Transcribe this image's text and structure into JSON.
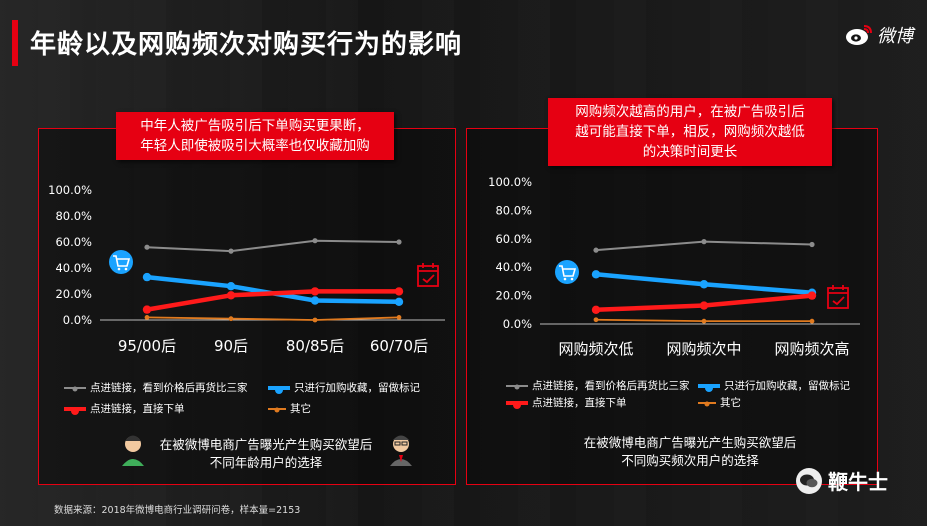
{
  "page": {
    "title": "年龄以及网购频次对购买行为的影响",
    "brand": "微博",
    "source": "数据来源：2018年微博电商行业调研问卷，样本量=2153",
    "watermark": "鞭牛士"
  },
  "colors": {
    "gray": "#8c8c8c",
    "blue": "#1aa3ff",
    "red": "#ff1a1a",
    "orange": "#e07a1f",
    "accent": "#e60012"
  },
  "chart_data": [
    {
      "type": "line",
      "callout": [
        "中年人被广告吸引后下单购买更果断，",
        "年轻人即使被吸引大概率也仅收藏加购"
      ],
      "categories": [
        "95/00后",
        "90后",
        "80/85后",
        "60/70后"
      ],
      "yticks": [
        "100.0%",
        "80.0%",
        "60.0%",
        "40.0%",
        "20.0%",
        "0.0%"
      ],
      "ylim": [
        0,
        100
      ],
      "series": [
        {
          "name": "点进链接，看到价格后再货比三家",
          "color": "gray",
          "values": [
            56,
            53,
            61,
            60
          ]
        },
        {
          "name": "只进行加购收藏，留做标记",
          "color": "blue",
          "values": [
            33,
            26,
            15,
            14
          ]
        },
        {
          "name": "点进链接，直接下单",
          "color": "red",
          "values": [
            8,
            19,
            22,
            22
          ]
        },
        {
          "name": "其它",
          "color": "orange",
          "values": [
            2,
            1,
            0,
            2
          ]
        }
      ],
      "caption": [
        "在被微博电商广告曝光产生购买欲望后",
        "不同年龄用户的选择"
      ]
    },
    {
      "type": "line",
      "callout": [
        "网购频次越高的用户，在被广告吸引后",
        "越可能直接下单，相反，网购频次越低",
        "的决策时间更长"
      ],
      "categories": [
        "网购频次低",
        "网购频次中",
        "网购频次高"
      ],
      "yticks": [
        "100.0%",
        "80.0%",
        "60.0%",
        "40.0%",
        "20.0%",
        "0.0%"
      ],
      "ylim": [
        0,
        100
      ],
      "series": [
        {
          "name": "点进链接，看到价格后再货比三家",
          "color": "gray",
          "values": [
            52,
            58,
            56
          ]
        },
        {
          "name": "只进行加购收藏，留做标记",
          "color": "blue",
          "values": [
            35,
            28,
            22
          ]
        },
        {
          "name": "点进链接，直接下单",
          "color": "red",
          "values": [
            10,
            13,
            20
          ]
        },
        {
          "name": "其它",
          "color": "orange",
          "values": [
            3,
            2,
            2
          ]
        }
      ],
      "caption": [
        "在被微博电商广告曝光产生购买欲望后",
        "不同购买频次用户的选择"
      ]
    }
  ]
}
